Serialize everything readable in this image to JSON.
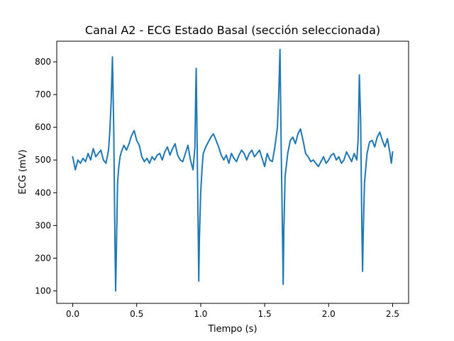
{
  "chart_data": {
    "type": "line",
    "title": "Canal A2 - ECG Estado Basal (sección seleccionada)",
    "xlabel": "Tiempo (s)",
    "ylabel": "ECG (mV)",
    "xlim": [
      -0.125,
      2.625
    ],
    "ylim": [
      62,
      863
    ],
    "xticks": [
      0.0,
      0.5,
      1.0,
      1.5,
      2.0,
      2.5
    ],
    "xtick_labels": [
      "0.0",
      "0.5",
      "1.0",
      "1.5",
      "2.0",
      "2.5"
    ],
    "yticks": [
      100,
      200,
      300,
      400,
      500,
      600,
      700,
      800
    ],
    "ytick_labels": [
      "100",
      "200",
      "300",
      "400",
      "500",
      "600",
      "700",
      "800"
    ],
    "grid": false,
    "line_color": "#1f77b4",
    "series": [
      {
        "x": [
          0.0,
          0.02,
          0.04,
          0.06,
          0.08,
          0.1,
          0.12,
          0.14,
          0.16,
          0.18,
          0.2,
          0.22,
          0.24,
          0.26,
          0.28,
          0.29,
          0.3,
          0.31,
          0.32,
          0.33,
          0.335,
          0.34,
          0.35,
          0.36,
          0.37,
          0.38,
          0.4,
          0.42,
          0.44,
          0.46,
          0.48,
          0.5,
          0.52,
          0.54,
          0.56,
          0.58,
          0.6,
          0.62,
          0.64,
          0.66,
          0.68,
          0.7,
          0.72,
          0.74,
          0.76,
          0.78,
          0.8,
          0.82,
          0.84,
          0.86,
          0.88,
          0.9,
          0.92,
          0.94,
          0.955,
          0.96,
          0.965,
          0.97,
          0.98,
          0.985,
          0.99,
          1.0,
          1.01,
          1.02,
          1.04,
          1.06,
          1.08,
          1.1,
          1.12,
          1.14,
          1.16,
          1.18,
          1.2,
          1.22,
          1.24,
          1.26,
          1.28,
          1.3,
          1.32,
          1.34,
          1.36,
          1.38,
          1.4,
          1.42,
          1.44,
          1.46,
          1.48,
          1.5,
          1.52,
          1.54,
          1.56,
          1.58,
          1.6,
          1.61,
          1.62,
          1.63,
          1.64,
          1.645,
          1.65,
          1.66,
          1.68,
          1.7,
          1.72,
          1.74,
          1.76,
          1.78,
          1.8,
          1.82,
          1.84,
          1.86,
          1.88,
          1.9,
          1.92,
          1.94,
          1.96,
          1.98,
          2.0,
          2.02,
          2.04,
          2.06,
          2.08,
          2.1,
          2.12,
          2.14,
          2.16,
          2.18,
          2.2,
          2.22,
          2.23,
          2.24,
          2.25,
          2.26,
          2.265,
          2.27,
          2.28,
          2.3,
          2.32,
          2.34,
          2.36,
          2.38,
          2.4,
          2.42,
          2.44,
          2.46,
          2.48,
          2.49,
          2.5
        ],
        "y": [
          510,
          470,
          500,
          490,
          505,
          495,
          520,
          500,
          535,
          510,
          520,
          530,
          500,
          490,
          530,
          590,
          680,
          815,
          600,
          240,
          100,
          200,
          430,
          480,
          510,
          525,
          545,
          530,
          550,
          575,
          590,
          560,
          545,
          510,
          495,
          505,
          490,
          510,
          500,
          515,
          520,
          500,
          525,
          540,
          515,
          535,
          550,
          515,
          500,
          495,
          520,
          545,
          500,
          470,
          540,
          680,
          780,
          620,
          300,
          130,
          260,
          400,
          470,
          520,
          540,
          555,
          570,
          580,
          560,
          540,
          515,
          500,
          515,
          490,
          520,
          505,
          495,
          515,
          530,
          520,
          500,
          520,
          530,
          510,
          520,
          530,
          505,
          480,
          520,
          500,
          495,
          540,
          600,
          700,
          838,
          520,
          260,
          120,
          280,
          450,
          520,
          560,
          570,
          550,
          580,
          595,
          560,
          520,
          510,
          495,
          500,
          490,
          480,
          495,
          510,
          490,
          500,
          515,
          520,
          500,
          510,
          490,
          500,
          525,
          510,
          495,
          520,
          500,
          560,
          760,
          620,
          280,
          160,
          270,
          430,
          520,
          555,
          560,
          540,
          570,
          585,
          560,
          540,
          565,
          520,
          490,
          525
        ]
      }
    ]
  }
}
